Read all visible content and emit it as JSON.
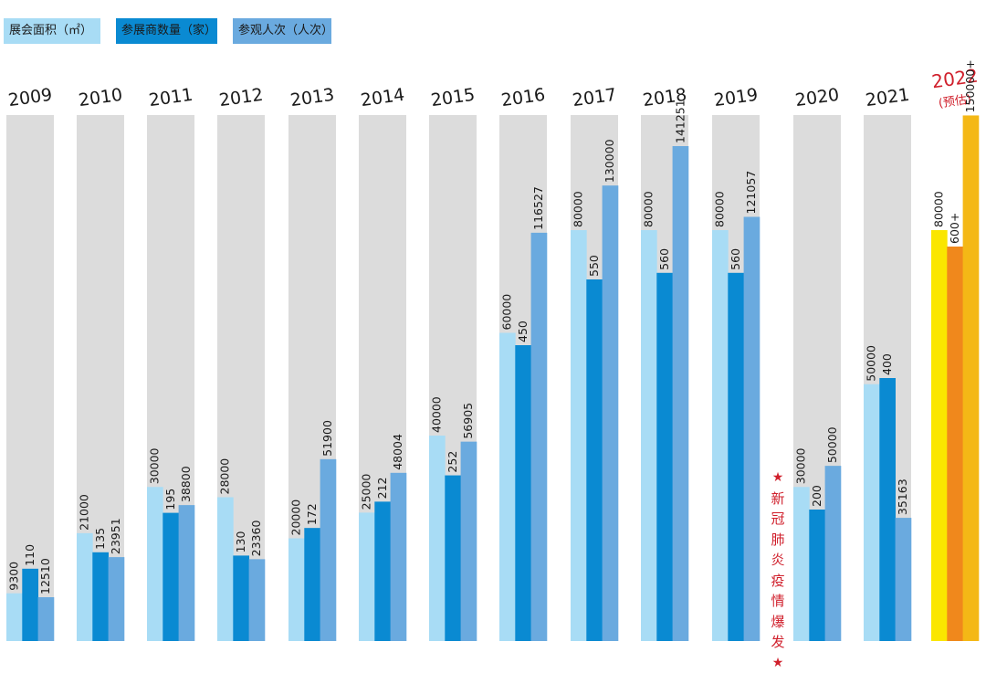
{
  "legend": {
    "area": "展会面积（㎡）",
    "exhibitors": "参展商数量（家）",
    "visitors": "参观人次（人次）"
  },
  "colors": {
    "area": "#a8dcf5",
    "exhibitors": "#0a8ad2",
    "visitors": "#6aaadf",
    "background_bar": "#dcdcdc",
    "forecast_area": "#fae600",
    "forecast_exhibitors": "#f0881c",
    "forecast_visitors": "#f4b816",
    "forecast_text": "#d0202c"
  },
  "note": {
    "star": "★",
    "chars": [
      "新",
      "冠",
      "肺",
      "炎",
      "疫",
      "情",
      "爆",
      "发"
    ]
  },
  "chart_data": {
    "type": "bar",
    "categories": [
      "2009",
      "2010",
      "2011",
      "2012",
      "2013",
      "2014",
      "2015",
      "2016",
      "2017",
      "2018",
      "2019",
      "2020",
      "2021",
      "2022"
    ],
    "forecast_suffix": "(预估)",
    "series": [
      {
        "name": "展会面积（㎡）",
        "values": [
          9300,
          21000,
          30000,
          28000,
          20000,
          25000,
          40000,
          60000,
          80000,
          80000,
          80000,
          30000,
          50000,
          80000
        ],
        "labels": [
          "9300",
          "21000",
          "30000",
          "28000",
          "20000",
          "25000",
          "40000",
          "60000",
          "80000",
          "80000",
          "80000",
          "30000",
          "50000",
          "80000"
        ]
      },
      {
        "name": "参展商数量（家）",
        "values": [
          110,
          135,
          195,
          130,
          172,
          212,
          252,
          450,
          550,
          560,
          560,
          200,
          400,
          600
        ],
        "labels": [
          "110",
          "135",
          "195",
          "130",
          "172",
          "212",
          "252",
          "450",
          "550",
          "560",
          "560",
          "200",
          "400",
          "600+"
        ]
      },
      {
        "name": "参观人次（人次）",
        "values": [
          12510,
          23951,
          38800,
          23360,
          51900,
          48004,
          56905,
          116527,
          130000,
          141251,
          121057,
          50000,
          35163,
          150000
        ],
        "labels": [
          "12510",
          "23951",
          "38800",
          "23360",
          "51900",
          "48004",
          "56905",
          "116527",
          "130000",
          "141251",
          "121057",
          "50000",
          "35163",
          "150000+"
        ]
      }
    ],
    "legend_position": "top-left",
    "grid": false
  }
}
